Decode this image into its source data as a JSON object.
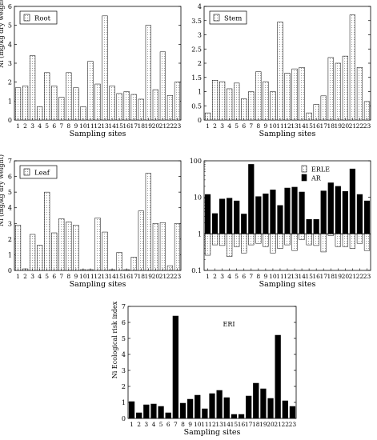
{
  "chart_data": [
    {
      "type": "bar",
      "legend": [
        "Root"
      ],
      "legend_placement": "top-left",
      "xlabel": "Sampling sites",
      "ylabel": "Ni (mg/kg dry weight)",
      "ylim": [
        0,
        6
      ],
      "yticks": [
        "0",
        "1",
        "2",
        "3",
        "4",
        "5",
        "6"
      ],
      "categories": [
        "1",
        "2",
        "3",
        "4",
        "5",
        "6",
        "7",
        "8",
        "9",
        "10",
        "11",
        "12",
        "13",
        "14",
        "15",
        "16",
        "17",
        "18",
        "19",
        "20",
        "21",
        "22",
        "23"
      ],
      "values": [
        1.7,
        1.8,
        3.4,
        0.7,
        2.5,
        1.8,
        1.2,
        2.5,
        1.7,
        0.7,
        3.1,
        1.9,
        5.5,
        1.8,
        1.4,
        1.5,
        1.35,
        1.1,
        5.0,
        1.6,
        3.6,
        1.3,
        2.0
      ]
    },
    {
      "type": "bar",
      "legend": [
        "Stem"
      ],
      "legend_placement": "top-left",
      "xlabel": "Sampling sites",
      "ylabel": "",
      "ylim": [
        0,
        4
      ],
      "yticks": [
        "0",
        "0.5",
        "1",
        "1.5",
        "2",
        "2.5",
        "3",
        "3.5",
        "4"
      ],
      "categories": [
        "1",
        "2",
        "3",
        "4",
        "5",
        "6",
        "7",
        "8",
        "9",
        "10",
        "11",
        "12",
        "13",
        "14",
        "15",
        "16",
        "17",
        "18",
        "19",
        "20",
        "21",
        "22",
        "23"
      ],
      "values": [
        0.25,
        1.4,
        1.35,
        1.1,
        1.3,
        0.75,
        1.0,
        1.7,
        1.35,
        1.0,
        3.45,
        1.65,
        1.8,
        1.85,
        0.25,
        0.55,
        0.85,
        2.2,
        2.0,
        2.25,
        3.7,
        1.85,
        0.65
      ]
    },
    {
      "type": "bar",
      "legend": [
        "Leaf"
      ],
      "legend_placement": "top-left",
      "xlabel": "Sampling sites",
      "ylabel": "Ni (mg/kg dry weight)",
      "ylim": [
        0,
        7
      ],
      "yticks": [
        "0",
        "1",
        "2",
        "3",
        "4",
        "5",
        "6",
        "7"
      ],
      "categories": [
        "1",
        "2",
        "3",
        "4",
        "5",
        "6",
        "7",
        "8",
        "9",
        "10",
        "11",
        "12",
        "13",
        "14",
        "15",
        "16",
        "17",
        "18",
        "19",
        "20",
        "21",
        "22",
        "23"
      ],
      "values": [
        2.9,
        0.1,
        2.3,
        1.6,
        5.0,
        2.4,
        3.3,
        3.1,
        2.9,
        0.05,
        0.05,
        3.35,
        2.45,
        0.05,
        1.15,
        0.05,
        0.85,
        3.8,
        6.2,
        3.0,
        3.05,
        0.3,
        3.0
      ]
    },
    {
      "type": "bar",
      "legend": [
        "ERLE",
        "AR"
      ],
      "legend_placement": "top-right",
      "xlabel": "Sampling sites",
      "ylabel": "",
      "y_scale": "log",
      "ylim": [
        0.1,
        100
      ],
      "yticks": [
        "0.1",
        "1",
        "10",
        "100"
      ],
      "categories": [
        "1",
        "2",
        "3",
        "4",
        "5",
        "6",
        "7",
        "8",
        "9",
        "10",
        "11",
        "12",
        "13",
        "14",
        "15",
        "16",
        "17",
        "18",
        "19",
        "20",
        "21",
        "22",
        "23"
      ],
      "series": [
        {
          "name": "ERLE",
          "values": [
            0.26,
            0.5,
            0.48,
            0.24,
            0.45,
            0.3,
            0.5,
            0.55,
            0.45,
            0.3,
            0.4,
            0.5,
            0.35,
            0.7,
            0.5,
            0.48,
            0.32,
            0.9,
            0.45,
            0.45,
            0.4,
            0.55,
            0.35
          ]
        },
        {
          "name": "AR",
          "values": [
            12,
            3.6,
            9,
            9.5,
            8,
            3.5,
            80,
            10.5,
            12.5,
            16,
            6,
            18,
            19,
            14,
            2.5,
            2.5,
            15,
            25,
            20,
            14.5,
            60,
            12,
            8
          ]
        }
      ]
    },
    {
      "type": "bar",
      "legend": [
        "ERI"
      ],
      "legend_placement": "top-center",
      "xlabel": "Sampling sites",
      "ylabel": "Ni Ecological risk index",
      "ylim": [
        0,
        7
      ],
      "yticks": [
        "0",
        "1",
        "2",
        "3",
        "4",
        "5",
        "6",
        "7"
      ],
      "categories": [
        "1",
        "2",
        "3",
        "4",
        "5",
        "6",
        "7",
        "8",
        "9",
        "10",
        "11",
        "12",
        "13",
        "14",
        "15",
        "16",
        "17",
        "18",
        "19",
        "20",
        "21",
        "22",
        "23"
      ],
      "values": [
        1.05,
        0.35,
        0.85,
        0.9,
        0.75,
        0.35,
        6.4,
        0.95,
        1.2,
        1.45,
        0.6,
        1.55,
        1.75,
        1.3,
        0.25,
        0.25,
        1.4,
        2.2,
        1.85,
        1.25,
        5.2,
        1.1,
        0.75
      ]
    }
  ]
}
